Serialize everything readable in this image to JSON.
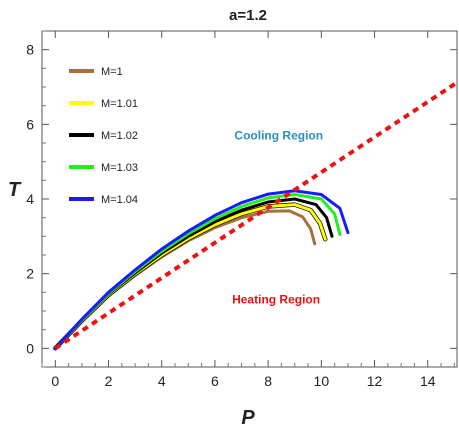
{
  "chart_data": {
    "type": "line",
    "title": "a=1.2",
    "xlabel": "P",
    "ylabel": "T",
    "xlim": [
      -0.5,
      15.1
    ],
    "ylim": [
      -0.5,
      8.5
    ],
    "xticks": [
      0,
      2,
      4,
      6,
      8,
      10,
      12,
      14
    ],
    "yticks": [
      0,
      2,
      4,
      6,
      8
    ],
    "grid": false,
    "legend_position": "top-left",
    "series": [
      {
        "name": "M=1",
        "color": "#a8713a",
        "points": [
          [
            0,
            0
          ],
          [
            1,
            0.72
          ],
          [
            2,
            1.4
          ],
          [
            3,
            1.95
          ],
          [
            4,
            2.45
          ],
          [
            5,
            2.88
          ],
          [
            6,
            3.23
          ],
          [
            7,
            3.5
          ],
          [
            8,
            3.67
          ],
          [
            8.8,
            3.68
          ],
          [
            9.3,
            3.52
          ],
          [
            9.6,
            3.2
          ],
          [
            9.75,
            2.8
          ]
        ]
      },
      {
        "name": "M=1.01",
        "color": "#ffff00",
        "points": [
          [
            0,
            0
          ],
          [
            1,
            0.74
          ],
          [
            2,
            1.43
          ],
          [
            3,
            1.99
          ],
          [
            4,
            2.5
          ],
          [
            5,
            2.94
          ],
          [
            6,
            3.31
          ],
          [
            7,
            3.6
          ],
          [
            8,
            3.8
          ],
          [
            9,
            3.85
          ],
          [
            9.6,
            3.7
          ],
          [
            9.95,
            3.35
          ],
          [
            10.15,
            2.92
          ]
        ]
      },
      {
        "name": "M=1.02",
        "color": "#000000",
        "points": [
          [
            0,
            0
          ],
          [
            1,
            0.75
          ],
          [
            2,
            1.45
          ],
          [
            3,
            2.02
          ],
          [
            4,
            2.55
          ],
          [
            5,
            3.0
          ],
          [
            6,
            3.39
          ],
          [
            7,
            3.7
          ],
          [
            8,
            3.92
          ],
          [
            9,
            4.0
          ],
          [
            9.8,
            3.85
          ],
          [
            10.2,
            3.5
          ],
          [
            10.4,
            3.0
          ]
        ]
      },
      {
        "name": "M=1.03",
        "color": "#22ee22",
        "points": [
          [
            0,
            0
          ],
          [
            1,
            0.76
          ],
          [
            2,
            1.47
          ],
          [
            3,
            2.06
          ],
          [
            4,
            2.6
          ],
          [
            5,
            3.07
          ],
          [
            6,
            3.47
          ],
          [
            7,
            3.8
          ],
          [
            8,
            4.03
          ],
          [
            9,
            4.12
          ],
          [
            10,
            4.0
          ],
          [
            10.5,
            3.6
          ],
          [
            10.7,
            3.05
          ]
        ]
      },
      {
        "name": "M=1.04",
        "color": "#1a1aff",
        "points": [
          [
            0,
            0
          ],
          [
            1,
            0.78
          ],
          [
            2,
            1.5
          ],
          [
            3,
            2.1
          ],
          [
            4,
            2.66
          ],
          [
            5,
            3.14
          ],
          [
            6,
            3.56
          ],
          [
            7,
            3.9
          ],
          [
            8,
            4.13
          ],
          [
            9,
            4.22
          ],
          [
            10,
            4.12
          ],
          [
            10.7,
            3.75
          ],
          [
            11.0,
            3.1
          ]
        ]
      },
      {
        "name": "",
        "style": "dotted",
        "color": "#ee1111",
        "points": [
          [
            0,
            0
          ],
          [
            15.1,
            7.12
          ]
        ]
      }
    ],
    "annotations": [
      {
        "text": "Cooling Region",
        "x": 8.4,
        "y": 5.6,
        "color": "#2a8fbd"
      },
      {
        "text": "Heating Region",
        "x": 8.3,
        "y": 1.2,
        "color": "#ee1111"
      }
    ]
  }
}
